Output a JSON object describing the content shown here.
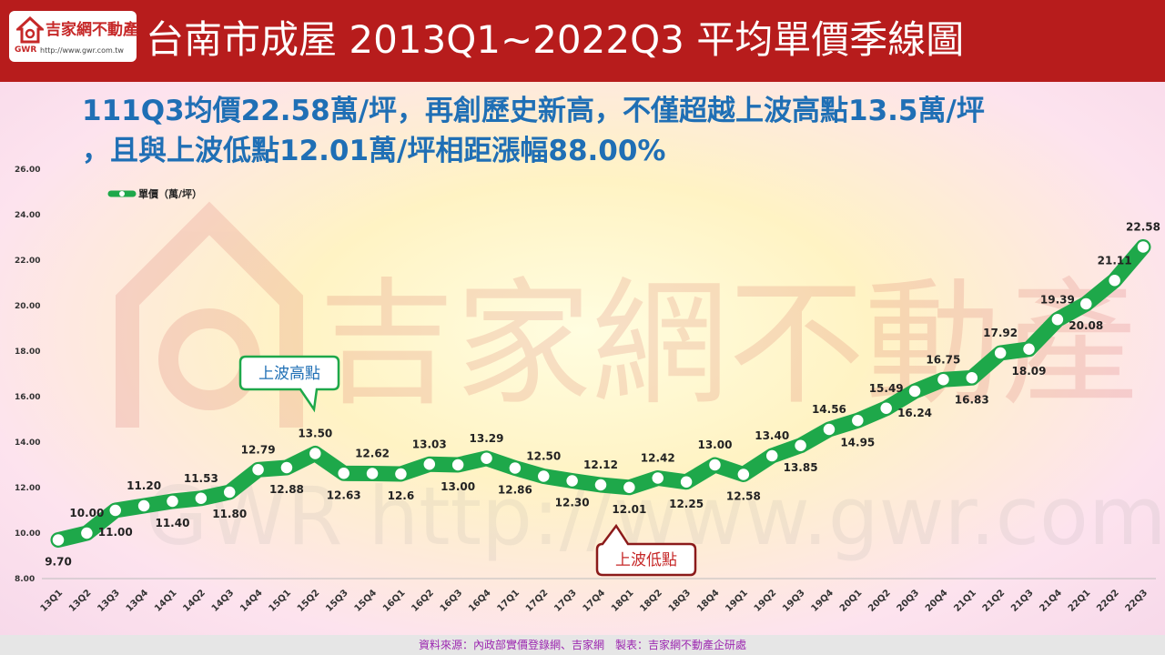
{
  "header": {
    "title": "台南市成屋 2013Q1~2022Q3 平均單價季線圖",
    "logo_name": "吉家網不動產",
    "logo_gwr": "GWR",
    "logo_url": "http://www.gwr.com.tw"
  },
  "subtitle": {
    "line1": "111Q3均價22.58萬/坪，再創歷史新高，不僅超越上波高點13.5萬/坪",
    "line2": "，且與上波低點12.01萬/坪相距漲幅88.00%"
  },
  "watermark": {
    "text1": "吉家網不動產",
    "text2": "GWR http://www.gwr.com.tw"
  },
  "callouts": {
    "high": "上波高點",
    "low": "上波低點"
  },
  "footer": {
    "source": "資料來源：內政部實價登錄網、吉家網　製表：吉家網不動產企研處"
  },
  "colors": {
    "header_bg": "#b71c1c",
    "line": "#1ea84a",
    "subtitle": "#1f6fb5",
    "callout_high": "#1ea84a",
    "callout_low": "#8b1a1a"
  },
  "chart_data": {
    "type": "line",
    "title": "",
    "xlabel": "",
    "ylabel": "",
    "ylim": [
      8,
      26
    ],
    "yticks": [
      "8.00",
      "10.00",
      "12.00",
      "14.00",
      "16.00",
      "18.00",
      "20.00",
      "22.00",
      "24.00",
      "26.00"
    ],
    "legend_position": "top-left",
    "categories": [
      "13Q1",
      "13Q2",
      "13Q3",
      "13Q4",
      "14Q1",
      "14Q2",
      "14Q3",
      "14Q4",
      "15Q1",
      "15Q2",
      "15Q3",
      "15Q4",
      "16Q1",
      "16Q2",
      "16Q3",
      "16Q4",
      "17Q1",
      "17Q2",
      "17Q3",
      "17Q4",
      "18Q1",
      "18Q2",
      "18Q3",
      "18Q4",
      "19Q1",
      "19Q2",
      "19Q3",
      "19Q4",
      "20Q1",
      "20Q2",
      "20Q3",
      "20Q4",
      "21Q1",
      "21Q2",
      "21Q3",
      "21Q4",
      "22Q1",
      "22Q2",
      "22Q3"
    ],
    "series": [
      {
        "name": "單價（萬/坪）",
        "values": [
          9.7,
          10.0,
          11.0,
          11.2,
          11.4,
          11.53,
          11.8,
          12.79,
          12.88,
          13.5,
          12.63,
          12.62,
          12.6,
          13.03,
          13.0,
          13.29,
          12.86,
          12.5,
          12.3,
          12.12,
          12.01,
          12.42,
          12.25,
          13.0,
          12.58,
          13.4,
          13.85,
          14.56,
          14.95,
          15.49,
          16.24,
          16.75,
          16.83,
          17.92,
          18.09,
          19.39,
          20.08,
          21.11,
          22.58
        ],
        "labels": [
          "9.70",
          "10.00",
          "11.00",
          "11.20",
          "11.40",
          "11.53",
          "11.80",
          "12.79",
          "12.88",
          "13.50",
          "12.63",
          "12.62",
          "12.6",
          "13.03",
          "13.00",
          "13.29",
          "12.86",
          "12.50",
          "12.30",
          "12.12",
          "12.01",
          "12.42",
          "12.25",
          "13.00",
          "12.58",
          "13.40",
          "13.85",
          "14.56",
          "14.95",
          "15.49",
          "16.24",
          "16.75",
          "16.83",
          "17.92",
          "18.09",
          "19.39",
          "20.08",
          "21.11",
          "22.58"
        ]
      }
    ]
  }
}
